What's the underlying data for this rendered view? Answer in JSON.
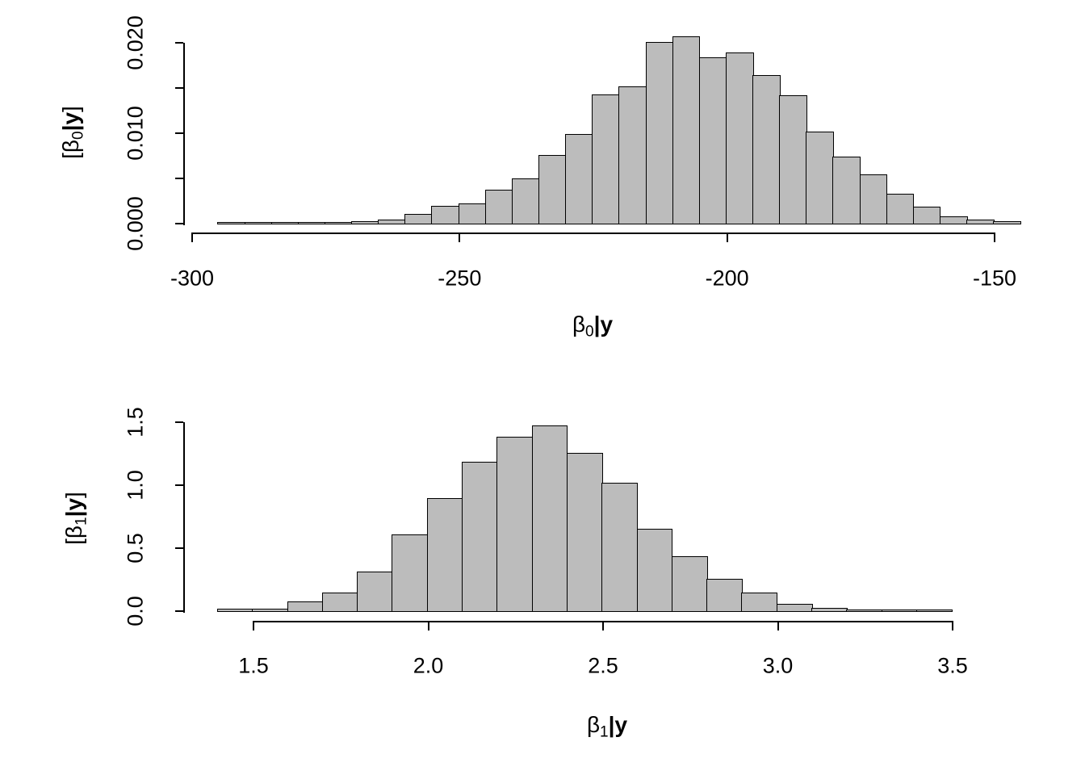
{
  "page": {
    "background": "#ffffff",
    "text_color": "#000000"
  },
  "chart_data": [
    {
      "type": "bar",
      "subtype": "histogram",
      "title": "",
      "xlabel": "beta0|y",
      "ylabel": "[beta0|y]",
      "xlabel_segments": [
        {
          "t": "β"
        },
        {
          "t": "0",
          "sub": true
        },
        {
          "t": "|",
          "bold": true
        },
        {
          "t": "y",
          "bold": true
        }
      ],
      "ylabel_segments": [
        {
          "t": "[β"
        },
        {
          "t": "0",
          "sub": true
        },
        {
          "t": "|",
          "bold": true
        },
        {
          "t": "y",
          "bold": true
        },
        {
          "t": "]"
        }
      ],
      "bin_start": -295,
      "bin_width": 5,
      "values": [
        0.0001,
        5e-05,
        5e-05,
        8e-05,
        0.0001,
        0.0002,
        0.0004,
        0.001,
        0.0019,
        0.0021,
        0.0037,
        0.0049,
        0.0075,
        0.0098,
        0.0142,
        0.0151,
        0.02,
        0.0206,
        0.0183,
        0.0188,
        0.0163,
        0.0141,
        0.0101,
        0.0073,
        0.0054,
        0.0032,
        0.0018,
        0.0007,
        0.0004,
        0.0002
      ],
      "x_axis_range": [
        -300,
        -150
      ],
      "y_axis_range": [
        0,
        0.02
      ],
      "x_ticks": [
        {
          "v": -300,
          "label": "-300"
        },
        {
          "v": -250,
          "label": "-250"
        },
        {
          "v": -200,
          "label": "-200"
        },
        {
          "v": -150,
          "label": "-150"
        }
      ],
      "y_ticks": [
        {
          "v": 0,
          "label": "0.000"
        },
        {
          "v": 0.005,
          "label": ""
        },
        {
          "v": 0.01,
          "label": "0.010"
        },
        {
          "v": 0.015,
          "label": ""
        },
        {
          "v": 0.02,
          "label": "0.020"
        }
      ],
      "grid": false,
      "bar_fill": "#bcbcbc",
      "bar_border": "#000000"
    },
    {
      "type": "bar",
      "subtype": "histogram",
      "title": "",
      "xlabel": "beta1|y",
      "ylabel": "[beta1|y]",
      "xlabel_segments": [
        {
          "t": "β"
        },
        {
          "t": "1",
          "sub": true
        },
        {
          "t": "|",
          "bold": true
        },
        {
          "t": "y",
          "bold": true
        }
      ],
      "ylabel_segments": [
        {
          "t": "[β"
        },
        {
          "t": "1",
          "sub": true
        },
        {
          "t": "|",
          "bold": true
        },
        {
          "t": "y",
          "bold": true
        },
        {
          "t": "]"
        }
      ],
      "bin_start": 1.4,
      "bin_width": 0.1,
      "values": [
        0.01,
        0.015,
        0.07,
        0.14,
        0.31,
        0.6,
        0.89,
        1.18,
        1.38,
        1.47,
        1.25,
        1.01,
        0.65,
        0.43,
        0.25,
        0.14,
        0.05,
        0.02,
        0.008,
        0.004,
        0.003
      ],
      "x_axis_range": [
        1.5,
        3.5
      ],
      "y_axis_range": [
        0,
        1.5
      ],
      "x_ticks": [
        {
          "v": 1.5,
          "label": "1.5"
        },
        {
          "v": 2.0,
          "label": "2.0"
        },
        {
          "v": 2.5,
          "label": "2.5"
        },
        {
          "v": 3.0,
          "label": "3.0"
        },
        {
          "v": 3.5,
          "label": "3.5"
        }
      ],
      "y_ticks": [
        {
          "v": 0,
          "label": "0.0"
        },
        {
          "v": 0.5,
          "label": "0.5"
        },
        {
          "v": 1.0,
          "label": "1.0"
        },
        {
          "v": 1.5,
          "label": "1.5"
        }
      ],
      "grid": false,
      "bar_fill": "#bcbcbc",
      "bar_border": "#000000"
    }
  ]
}
